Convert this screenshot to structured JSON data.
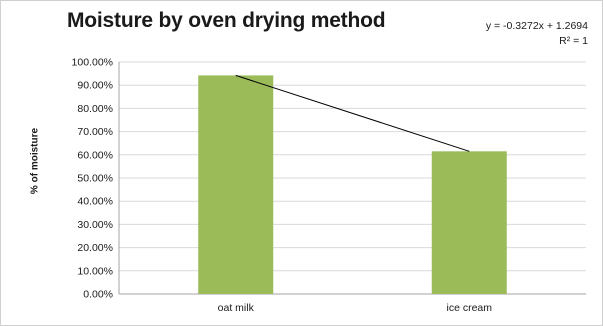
{
  "chart_data": {
    "type": "bar",
    "title": "Moisture by oven drying method",
    "ylabel": "% of moisture",
    "xlabel": "",
    "categories": [
      "oat milk",
      "ice cream"
    ],
    "values": [
      0.9422,
      0.615
    ],
    "ylim": [
      0,
      1.0
    ],
    "ytick_step": 0.1,
    "ytick_labels": [
      "0.00%",
      "10.00%",
      "20.00%",
      "30.00%",
      "40.00%",
      "50.00%",
      "60.00%",
      "70.00%",
      "80.00%",
      "90.00%",
      "100.00%"
    ],
    "grid": true,
    "legend": "none",
    "bar_color": "#9bbb59",
    "trendline": {
      "type": "linear",
      "equation": "y = -0.3272x + 1.2694",
      "r_squared": "R² = 1",
      "color": "#000000"
    }
  }
}
